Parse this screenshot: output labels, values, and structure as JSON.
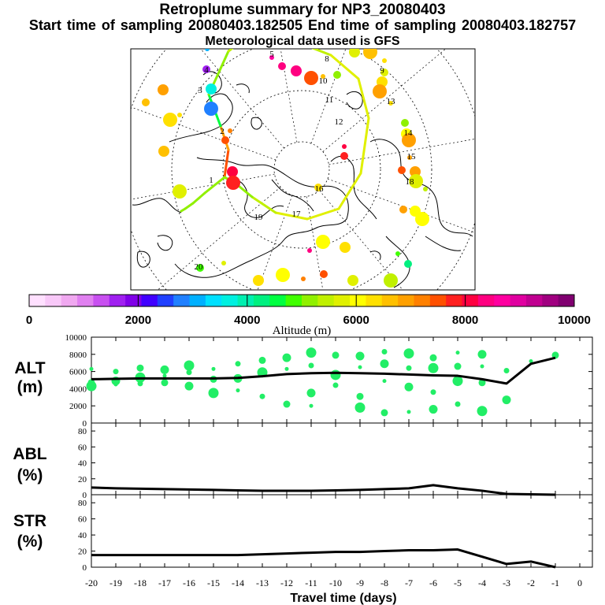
{
  "header": {
    "title": "Retroplume summary for NP3_20080403",
    "sampling_line": "Start time of sampling 20080403.182505     End time of sampling 20080403.182757",
    "met_line": "Meteorological data used is GFS"
  },
  "colorbar": {
    "label": "Altitude (m)",
    "tick_labels": [
      "0",
      "2000",
      "4000",
      "6000",
      "8000",
      "10000"
    ],
    "colors": [
      "#ffe0ff",
      "#f8c8f8",
      "#f0a8f0",
      "#e080f0",
      "#c850f0",
      "#a020f0",
      "#8000e8",
      "#4000ff",
      "#2040ff",
      "#2080ff",
      "#00b0ff",
      "#00e0ff",
      "#00f0e0",
      "#00f0b0",
      "#00f080",
      "#00ff40",
      "#40ff00",
      "#90f000",
      "#c0f000",
      "#e0f000",
      "#ffff00",
      "#ffe000",
      "#ffc000",
      "#ffa000",
      "#ff8000",
      "#ff5000",
      "#ff2020",
      "#ff0040",
      "#ff0080",
      "#ff00a0",
      "#e000a0",
      "#c00090",
      "#a00080",
      "#800070"
    ]
  },
  "map": {
    "trajectory_labels": [
      "1",
      "2",
      "3",
      "4",
      "5",
      "6",
      "7",
      "8",
      "9",
      "10",
      "11",
      "12",
      "13",
      "14",
      "15",
      "16",
      "17",
      "18",
      "19",
      "20"
    ]
  },
  "chart_data": [
    {
      "type": "line",
      "panel": "ALT",
      "ylabel": "ALT (m)",
      "ylim": [
        0,
        10000
      ],
      "yticks": [
        "0",
        "2000",
        "4000",
        "6000",
        "8000",
        "10000"
      ],
      "x": [
        -20,
        -19,
        -18,
        -17,
        -16,
        -15,
        -14,
        -13,
        -12,
        -11,
        -10,
        -9,
        -8,
        -7,
        -6,
        -5,
        -4,
        -3,
        -2,
        -1
      ],
      "series": [
        {
          "name": "mean altitude",
          "values": [
            5100,
            5150,
            5200,
            5200,
            5200,
            5200,
            5250,
            5450,
            5700,
            5800,
            5850,
            5800,
            5750,
            5650,
            5550,
            5500,
            5100,
            4600,
            6900,
            7600
          ]
        }
      ],
      "plume_points": [
        [
          -20,
          6300
        ],
        [
          -20,
          4700
        ],
        [
          -20,
          4300
        ],
        [
          -19,
          6000
        ],
        [
          -19,
          4900
        ],
        [
          -19,
          4500
        ],
        [
          -18,
          6400
        ],
        [
          -18,
          5300
        ],
        [
          -18,
          4600
        ],
        [
          -17,
          6200
        ],
        [
          -17,
          5500
        ],
        [
          -17,
          4700
        ],
        [
          -16,
          6700
        ],
        [
          -16,
          5900
        ],
        [
          -16,
          4300
        ],
        [
          -15,
          6300
        ],
        [
          -15,
          5100
        ],
        [
          -15,
          3500
        ],
        [
          -14,
          6900
        ],
        [
          -14,
          5200
        ],
        [
          -14,
          3800
        ],
        [
          -13,
          7300
        ],
        [
          -13,
          5900
        ],
        [
          -13,
          3100
        ],
        [
          -12,
          7600
        ],
        [
          -12,
          6300
        ],
        [
          -12,
          2200
        ],
        [
          -11,
          8200
        ],
        [
          -11,
          6700
        ],
        [
          -11,
          3500
        ],
        [
          -11,
          2000
        ],
        [
          -10,
          7900
        ],
        [
          -10,
          5600
        ],
        [
          -10,
          4400
        ],
        [
          -9,
          7800
        ],
        [
          -9,
          6500
        ],
        [
          -9,
          3100
        ],
        [
          -9,
          1800
        ],
        [
          -8,
          8300
        ],
        [
          -8,
          6900
        ],
        [
          -8,
          4900
        ],
        [
          -8,
          1200
        ],
        [
          -7,
          8100
        ],
        [
          -7,
          6400
        ],
        [
          -7,
          4200
        ],
        [
          -7,
          1300
        ],
        [
          -6,
          7600
        ],
        [
          -6,
          6400
        ],
        [
          -6,
          3600
        ],
        [
          -6,
          1600
        ],
        [
          -5,
          8200
        ],
        [
          -5,
          6600
        ],
        [
          -5,
          4900
        ],
        [
          -5,
          2200
        ],
        [
          -4,
          8000
        ],
        [
          -4,
          6600
        ],
        [
          -4,
          4700
        ],
        [
          -4,
          1400
        ],
        [
          -3,
          6100
        ],
        [
          -3,
          2700
        ],
        [
          -2,
          7200
        ],
        [
          -1,
          7900
        ]
      ]
    },
    {
      "type": "line",
      "panel": "ABL",
      "ylabel": "ABL (%)",
      "ylim": [
        0,
        90
      ],
      "yticks": [
        "0",
        "20",
        "40",
        "60",
        "80"
      ],
      "x": [
        -20,
        -19,
        -18,
        -17,
        -16,
        -15,
        -14,
        -13,
        -12,
        -11,
        -10,
        -9,
        -8,
        -7,
        -6,
        -5,
        -4,
        -3,
        -2,
        -1
      ],
      "series": [
        {
          "name": "ABL fraction",
          "values": [
            9,
            8,
            7.5,
            7,
            6.5,
            6,
            5.5,
            5,
            5,
            5,
            5.5,
            6,
            7,
            8,
            12,
            8,
            5,
            1,
            0.5,
            0
          ]
        }
      ]
    },
    {
      "type": "line",
      "panel": "STR",
      "ylabel": "STR (%)",
      "ylim": [
        0,
        90
      ],
      "yticks": [
        "0",
        "20",
        "40",
        "60",
        "80"
      ],
      "x": [
        -20,
        -19,
        -18,
        -17,
        -16,
        -15,
        -14,
        -13,
        -12,
        -11,
        -10,
        -9,
        -8,
        -7,
        -6,
        -5,
        -4,
        -3,
        -2,
        -1
      ],
      "series": [
        {
          "name": "STR fraction",
          "values": [
            15,
            15,
            15,
            15,
            15,
            15,
            15,
            16,
            17,
            18,
            19,
            19,
            20,
            21,
            21,
            22,
            13,
            4,
            7,
            0
          ]
        }
      ],
      "xlabel": "Travel time (days)",
      "xticks": [
        "-20",
        "-19",
        "-18",
        "-17",
        "-16",
        "-15",
        "-14",
        "-13",
        "-12",
        "-11",
        "-10",
        "-9",
        "-8",
        "-7",
        "-6",
        "-5",
        "-4",
        "-3",
        "-2",
        "-1",
        "0"
      ]
    }
  ]
}
